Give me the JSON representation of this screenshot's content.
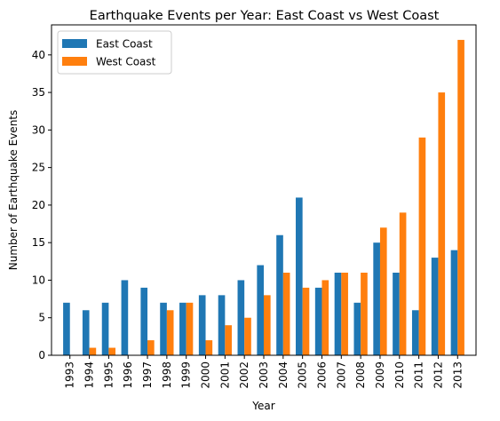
{
  "chart_data": {
    "type": "bar",
    "title": "Earthquake Events per Year: East Coast vs West Coast",
    "xlabel": "Year",
    "ylabel": "Number of Earthquake Events",
    "ylim": [
      0,
      44
    ],
    "yticks": [
      0,
      5,
      10,
      15,
      20,
      25,
      30,
      35,
      40
    ],
    "grid": false,
    "legend_position": "top-left",
    "categories": [
      "1993",
      "1994",
      "1995",
      "1996",
      "1997",
      "1998",
      "1999",
      "2000",
      "2001",
      "2002",
      "2003",
      "2004",
      "2005",
      "2006",
      "2007",
      "2008",
      "2009",
      "2010",
      "2011",
      "2012",
      "2013"
    ],
    "series": [
      {
        "name": "East Coast",
        "color": "#1f77b4",
        "values": [
          7,
          6,
          7,
          10,
          9,
          7,
          7,
          8,
          8,
          10,
          12,
          16,
          21,
          9,
          11,
          7,
          15,
          11,
          6,
          13,
          14
        ]
      },
      {
        "name": "West Coast",
        "color": "#ff7f0e",
        "values": [
          0,
          1,
          1,
          0,
          2,
          6,
          7,
          2,
          4,
          5,
          8,
          11,
          9,
          10,
          11,
          11,
          17,
          19,
          29,
          35,
          42
        ]
      }
    ]
  }
}
